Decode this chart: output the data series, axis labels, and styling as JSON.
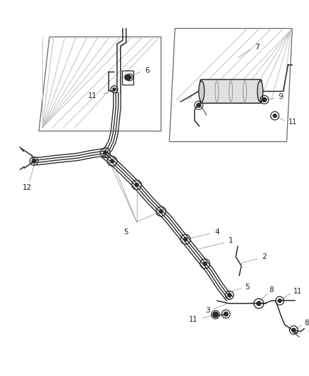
{
  "bg_color": "#ffffff",
  "line_color": "#2a2a2a",
  "label_color": "#1a1a1a",
  "fig_width": 4.38,
  "fig_height": 5.33,
  "tube_color": "#2a2a2a",
  "hatch_color": "#aaaaaa",
  "clip_color": "#2a2a2a"
}
